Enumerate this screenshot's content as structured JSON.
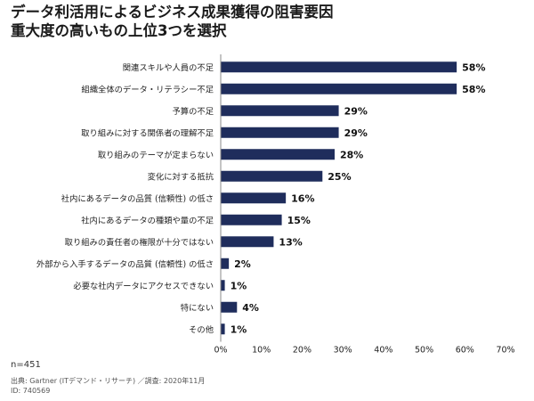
{
  "title": {
    "line1": "データ利活用によるビジネス成果獲得の阻害要因",
    "line2": "重大度の高いもの上位3つを選択"
  },
  "footer": {
    "n": "n=451",
    "source": "出典: Gartner (ITデマンド・リサーチ) ／調査: 2020年11月",
    "id": "ID: 740569"
  },
  "chart_data": {
    "type": "bar",
    "orientation": "horizontal",
    "categories": [
      "関連スキルや人員の不足",
      "組織全体のデータ・リテラシー不足",
      "予算の不足",
      "取り組みに対する関係者の理解不足",
      "取り組みのテーマが定まらない",
      "変化に対する抵抗",
      "社内にあるデータの品質 (信頼性) の低さ",
      "社内にあるデータの種類や量の不足",
      "取り組みの責任者の権限が十分ではない",
      "外部から入手するデータの品質 (信頼性) の低さ",
      "必要な社内データにアクセスできない",
      "特にない",
      "その他"
    ],
    "values": [
      58,
      58,
      29,
      29,
      28,
      25,
      16,
      15,
      13,
      2,
      1,
      4,
      1
    ],
    "value_labels": [
      "58%",
      "58%",
      "29%",
      "29%",
      "28%",
      "25%",
      "16%",
      "15%",
      "13%",
      "2%",
      "1%",
      "4%",
      "1%"
    ],
    "xlim": [
      0,
      70
    ],
    "xticks": [
      0,
      10,
      20,
      30,
      40,
      50,
      60,
      70
    ],
    "xtick_labels": [
      "0%",
      "10%",
      "20%",
      "30%",
      "40%",
      "50%",
      "60%",
      "70%"
    ],
    "grid": false,
    "bar_color": "#1f2d5c"
  }
}
